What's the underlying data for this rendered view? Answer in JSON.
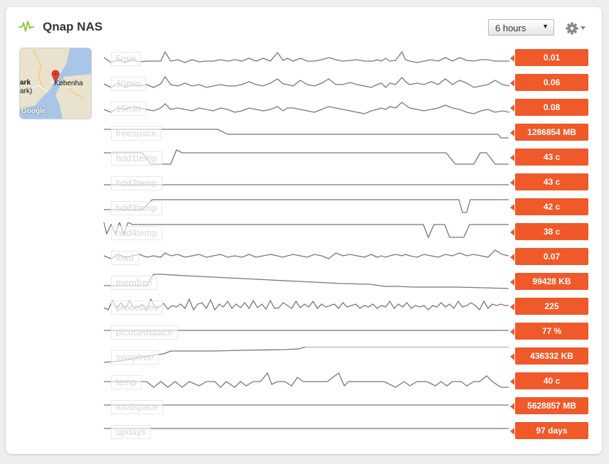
{
  "widget": {
    "title": "Qnap NAS",
    "pulse_icon": "activity-icon",
    "range_selector": {
      "selected": "6 hours"
    },
    "settings_icon": "gear-icon",
    "accent_color": "#f0592a"
  },
  "map": {
    "label_left_1": "ark",
    "label_left_2": "ark)",
    "city_label": "Københa",
    "google_label": "Google",
    "marker_icon": "map-marker-icon"
  },
  "metrics": [
    {
      "label": "5min",
      "value": "0.01"
    },
    {
      "label": "10min",
      "value": "0.06"
    },
    {
      "label": "15min",
      "value": "0.08"
    },
    {
      "label": "freespace",
      "value": "1286854 MB"
    },
    {
      "label": "hdd1temp",
      "value": "43 c"
    },
    {
      "label": "hdd2temp",
      "value": "43 c"
    },
    {
      "label": "hdd3temp",
      "value": "42 c"
    },
    {
      "label": "hdd4temp",
      "value": "38 c"
    },
    {
      "label": "load",
      "value": "0.07"
    },
    {
      "label": "memfree",
      "value": "99428 KB"
    },
    {
      "label": "processes",
      "value": "225"
    },
    {
      "label": "ptcusedspace",
      "value": "77 %"
    },
    {
      "label": "swapfree",
      "value": "436332 KB"
    },
    {
      "label": "temp",
      "value": "40 c"
    },
    {
      "label": "totalspace",
      "value": "5628857 MB"
    },
    {
      "label": "updays",
      "value": "97 days"
    }
  ]
}
